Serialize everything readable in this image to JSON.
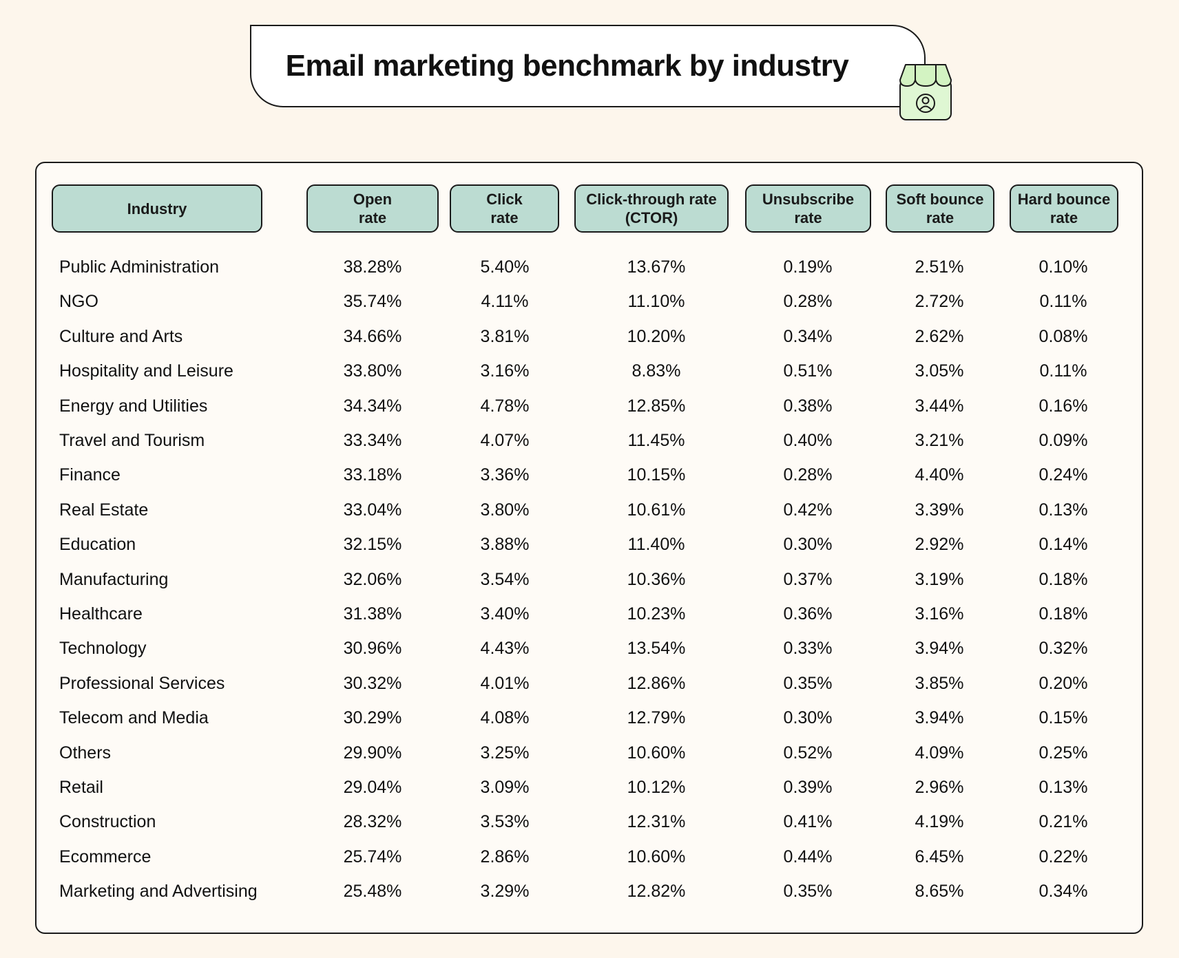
{
  "title": "Email marketing benchmark by industry",
  "colors": {
    "background": "#fdf6ec",
    "header_fill": "#bcdcd2",
    "icon_fill": "#d8f5c8",
    "border": "#1a1a1a"
  },
  "icons": {
    "title_badge": "storefront-user-icon"
  },
  "chart_data": {
    "type": "table",
    "title": "Email marketing benchmark by industry",
    "columns": [
      "Industry",
      "Open\nrate",
      "Click\nrate",
      "Click-through rate\n(CTOR)",
      "Unsubscribe\nrate",
      "Soft bounce\nrate",
      "Hard bounce\nrate"
    ],
    "rows": [
      [
        "Public Administration",
        "38.28%",
        "5.40%",
        "13.67%",
        "0.19%",
        "2.51%",
        "0.10%"
      ],
      [
        "NGO",
        "35.74%",
        "4.11%",
        "11.10%",
        "0.28%",
        "2.72%",
        "0.11%"
      ],
      [
        "Culture and Arts",
        "34.66%",
        "3.81%",
        "10.20%",
        "0.34%",
        "2.62%",
        "0.08%"
      ],
      [
        "Hospitality and Leisure",
        "33.80%",
        "3.16%",
        "8.83%",
        "0.51%",
        "3.05%",
        "0.11%"
      ],
      [
        "Energy and Utilities",
        "34.34%",
        "4.78%",
        "12.85%",
        "0.38%",
        "3.44%",
        "0.16%"
      ],
      [
        "Travel and Tourism",
        "33.34%",
        "4.07%",
        "11.45%",
        "0.40%",
        "3.21%",
        "0.09%"
      ],
      [
        "Finance",
        "33.18%",
        "3.36%",
        "10.15%",
        "0.28%",
        "4.40%",
        "0.24%"
      ],
      [
        "Real Estate",
        "33.04%",
        "3.80%",
        "10.61%",
        "0.42%",
        "3.39%",
        "0.13%"
      ],
      [
        "Education",
        "32.15%",
        "3.88%",
        "11.40%",
        "0.30%",
        "2.92%",
        "0.14%"
      ],
      [
        "Manufacturing",
        "32.06%",
        "3.54%",
        "10.36%",
        "0.37%",
        "3.19%",
        "0.18%"
      ],
      [
        "Healthcare",
        "31.38%",
        "3.40%",
        "10.23%",
        "0.36%",
        "3.16%",
        "0.18%"
      ],
      [
        "Technology",
        "30.96%",
        "4.43%",
        "13.54%",
        "0.33%",
        "3.94%",
        "0.32%"
      ],
      [
        "Professional Services",
        "30.32%",
        "4.01%",
        "12.86%",
        "0.35%",
        "3.85%",
        "0.20%"
      ],
      [
        "Telecom and Media",
        "30.29%",
        "4.08%",
        "12.79%",
        "0.30%",
        "3.94%",
        "0.15%"
      ],
      [
        "Others",
        "29.90%",
        "3.25%",
        "10.60%",
        "0.52%",
        "4.09%",
        "0.25%"
      ],
      [
        "Retail",
        "29.04%",
        "3.09%",
        "10.12%",
        "0.39%",
        "2.96%",
        "0.13%"
      ],
      [
        "Construction",
        "28.32%",
        "3.53%",
        "12.31%",
        "0.41%",
        "4.19%",
        "0.21%"
      ],
      [
        "Ecommerce",
        "25.74%",
        "2.86%",
        "10.60%",
        "0.44%",
        "6.45%",
        "0.22%"
      ],
      [
        "Marketing and Advertising",
        "25.48%",
        "3.29%",
        "12.82%",
        "0.35%",
        "8.65%",
        "0.34%"
      ]
    ]
  }
}
